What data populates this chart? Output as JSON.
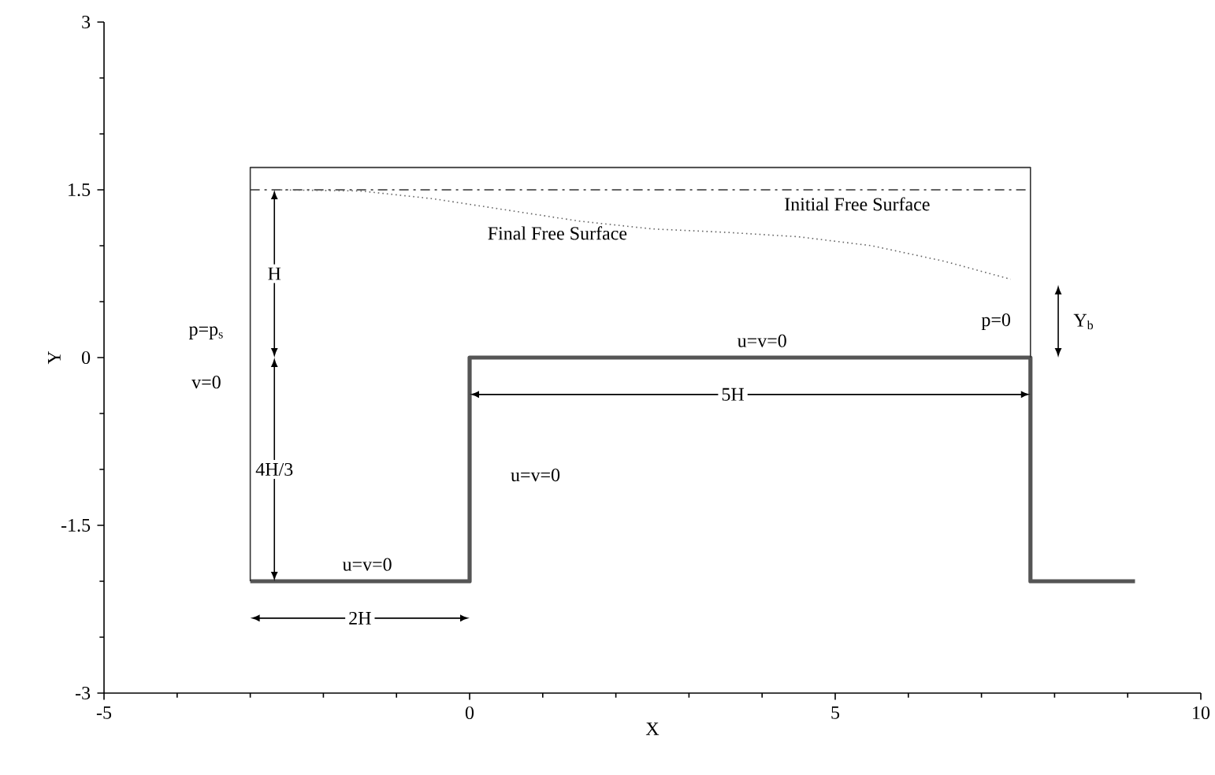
{
  "chart_data": {
    "type": "line",
    "xlabel": "X",
    "ylabel": "Y",
    "xlim": [
      -5,
      10
    ],
    "ylim": [
      -3,
      3
    ],
    "xticks": [
      -5,
      0,
      5,
      10
    ],
    "yticks": [
      -3,
      -1.5,
      0,
      1.5,
      3
    ],
    "grid": false,
    "marker": "none",
    "series": [
      {
        "color": "#555555",
        "line_style": "solid",
        "x": [
          -3,
          0,
          0,
          7.67,
          7.67,
          9.1
        ],
        "values": [
          -2,
          -2,
          0,
          0,
          -2,
          -2
        ]
      },
      {
        "color": "#333333",
        "line_style": "solid",
        "x": [
          -3,
          -3,
          7.67,
          7.67
        ],
        "values": [
          -2,
          1.7,
          1.7,
          0
        ]
      },
      {
        "color": "#333333",
        "line_style": "dashdot",
        "x": [
          -3,
          7.67
        ],
        "values": [
          1.5,
          1.5
        ]
      },
      {
        "color": "#666666",
        "line_style": "dotted",
        "x": [
          -2.7,
          -1.5,
          -0.5,
          0.5,
          1.5,
          2.5,
          3.5,
          4.5,
          5.5,
          6.5,
          7.4
        ],
        "values": [
          1.5,
          1.49,
          1.42,
          1.32,
          1.22,
          1.15,
          1.12,
          1.08,
          1.0,
          0.86,
          0.7
        ]
      }
    ],
    "annotations": [
      {
        "text": "Initial Free Surface",
        "x": 5.3,
        "y": 1.5
      },
      {
        "text": "Final Free Surface",
        "x": 1.2,
        "y": 1.24
      },
      {
        "text": "H",
        "x": -2.67,
        "y": 0.75
      },
      {
        "text": "4H/3",
        "x": -2.67,
        "y": -1.0
      },
      {
        "text": "p=p$_{s}$",
        "x": -3.6,
        "y": 0.22
      },
      {
        "text": "v=0",
        "x": -3.6,
        "y": -0.22
      },
      {
        "text": "u=v=0",
        "x": -1.4,
        "y": -1.85
      },
      {
        "text": "u=v=0",
        "x": 0.9,
        "y": -1.05
      },
      {
        "text": "u=v=0",
        "x": 4.0,
        "y": 0.15
      },
      {
        "text": "p=0",
        "x": 7.2,
        "y": 0.32
      },
      {
        "text": "Y$_{b}$",
        "x": 8.4,
        "y": 0.32
      },
      {
        "text": "2H",
        "x": -1.5,
        "y": -2.33
      },
      {
        "text": "5H",
        "x": 3.6,
        "y": -0.33
      }
    ]
  }
}
